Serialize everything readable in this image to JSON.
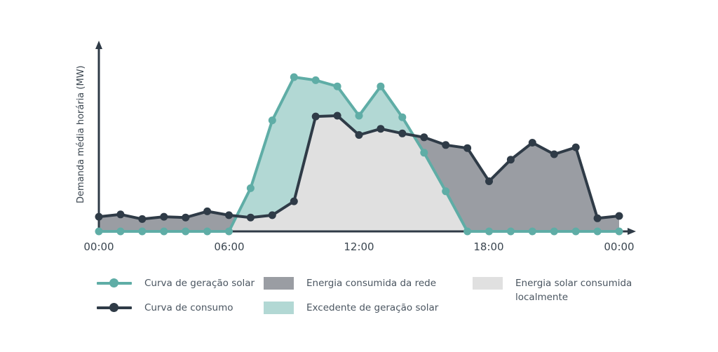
{
  "chart_data": {
    "type": "area",
    "title": "",
    "xlabel": "",
    "ylabel": "Demanda média horária (MW)",
    "x": [
      0,
      1,
      2,
      3,
      4,
      5,
      6,
      7,
      8,
      9,
      10,
      11,
      12,
      13,
      14,
      15,
      16,
      17,
      18,
      19,
      20,
      21,
      22,
      23,
      24
    ],
    "x_tick_labels": [
      "00:00",
      "06:00",
      "12:00",
      "18:00",
      "00:00"
    ],
    "x_tick_positions": [
      0,
      6,
      12,
      18,
      24
    ],
    "ylim": [
      0,
      100
    ],
    "y_ticks_shown": false,
    "grid": false,
    "legend_position": "bottom",
    "series": [
      {
        "name": "Curva de geração solar",
        "kind": "line+markers",
        "color": "#5fada6",
        "values": [
          0,
          0,
          0,
          0,
          0,
          0,
          0,
          28,
          72,
          100,
          98,
          94,
          75,
          94,
          74,
          51,
          26,
          0,
          0,
          0,
          0,
          0,
          0,
          0,
          0
        ]
      },
      {
        "name": "Curva de consumo",
        "kind": "line+markers",
        "color": "#2f3b47",
        "values": [
          9.5,
          11,
          8,
          9.5,
          9,
          13,
          10.5,
          9,
          10.5,
          19.5,
          74.5,
          75,
          62.5,
          66.5,
          63.5,
          61,
          56,
          54,
          32.5,
          46.5,
          57.5,
          50,
          54.5,
          8.5,
          10
        ]
      }
    ],
    "areas": [
      {
        "name": "Energia consumida da rede",
        "color": "#9a9da3",
        "definition": "consumption above solar generation"
      },
      {
        "name": "Excedente de geração solar",
        "color": "#b2d8d4",
        "definition": "solar generation above consumption"
      },
      {
        "name": "Energia solar consumida localmente",
        "color": "#e0e0e0",
        "definition": "min(consumption, solar)"
      }
    ]
  },
  "axis": {
    "ylabel": "Demanda média horária (MW)",
    "xticks": [
      "00:00",
      "06:00",
      "12:00",
      "18:00",
      "00:00"
    ]
  },
  "legend": {
    "solar_curve": "Curva de geração solar",
    "consumption_curve": "Curva de consumo",
    "grid_energy": "Energia consumida da rede",
    "solar_surplus": "Excedente de geração solar",
    "local_solar_line1": "Energia solar consumida",
    "local_solar_line2": "localmente"
  },
  "colors": {
    "solar": "#5fada6",
    "consumption": "#2f3b47",
    "grid_area": "#9a9da3",
    "surplus_area": "#b2d8d4",
    "local_area": "#e0e0e0",
    "axis": "#2f3b47"
  }
}
